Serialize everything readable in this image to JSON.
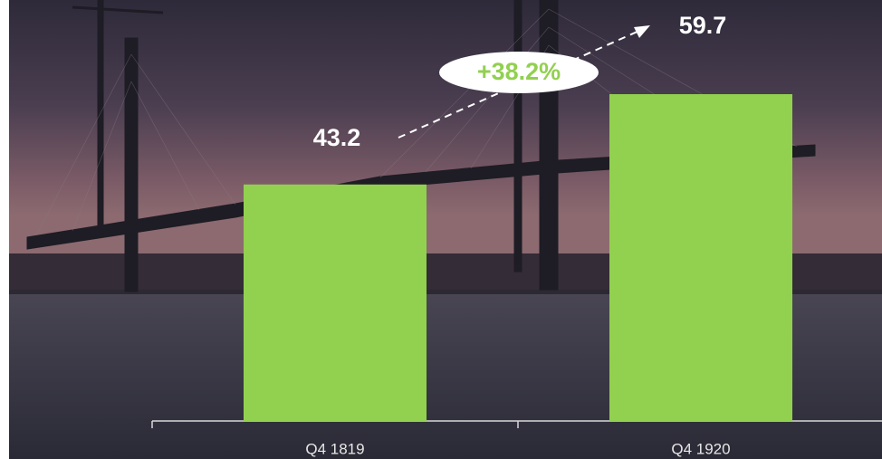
{
  "chart_data": {
    "type": "bar",
    "categories": [
      "Q4 1819",
      "Q4 1920"
    ],
    "values": [
      43.2,
      59.7
    ],
    "color": "#92d050",
    "annotation": "+38.2%"
  }
}
